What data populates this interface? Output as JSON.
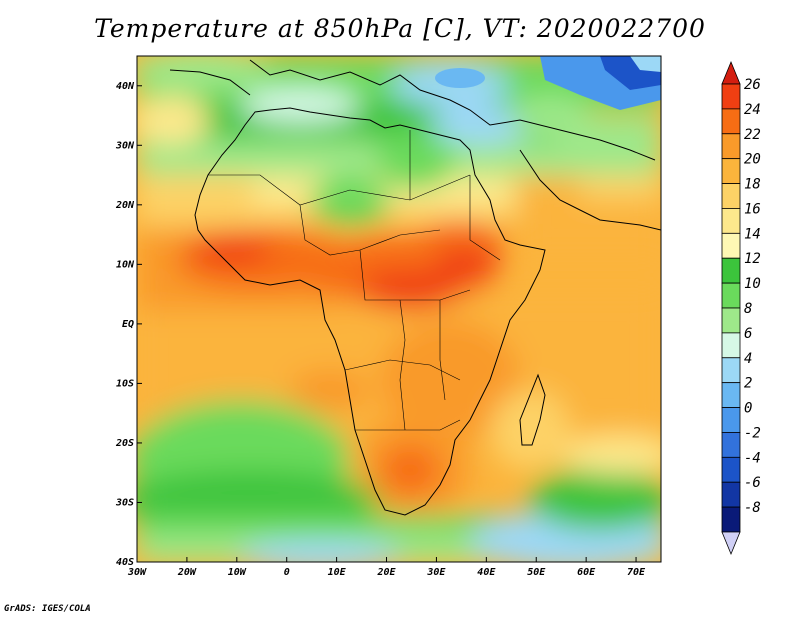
{
  "title": "Temperature at 850hPa [C], VT: 2020022700",
  "credit": "GrADS: IGES/COLA",
  "map": {
    "projection": "lat-lon",
    "lon_range": [
      -30,
      75
    ],
    "lat_range": [
      -40,
      45
    ],
    "lon_ticks": [
      "30W",
      "20W",
      "10W",
      "0",
      "10E",
      "20E",
      "30E",
      "40E",
      "50E",
      "60E",
      "70E"
    ],
    "lat_ticks": [
      "40S",
      "30S",
      "20S",
      "10S",
      "EQ",
      "10N",
      "20N",
      "30N",
      "40N"
    ],
    "region": "Africa"
  },
  "colorbar": {
    "labels": [
      "26",
      "24",
      "22",
      "20",
      "18",
      "16",
      "14",
      "12",
      "10",
      "8",
      "6",
      "4",
      "2",
      "0",
      "-2",
      "-4",
      "-6",
      "-8"
    ],
    "colors": [
      "#f03f12",
      "#f76d14",
      "#f99a2a",
      "#fbb43c",
      "#fdd266",
      "#fde88c",
      "#fef8b4",
      "#3cc43c",
      "#6ada5c",
      "#9ee88a",
      "#d6f8e6",
      "#9cd8f6",
      "#6ab8f2",
      "#4a98ec",
      "#3272dc",
      "#1c54c8",
      "#1236a4",
      "#0a1a78"
    ],
    "top_color": "#d41e10",
    "bottom_color": "#d0d0f6"
  }
}
